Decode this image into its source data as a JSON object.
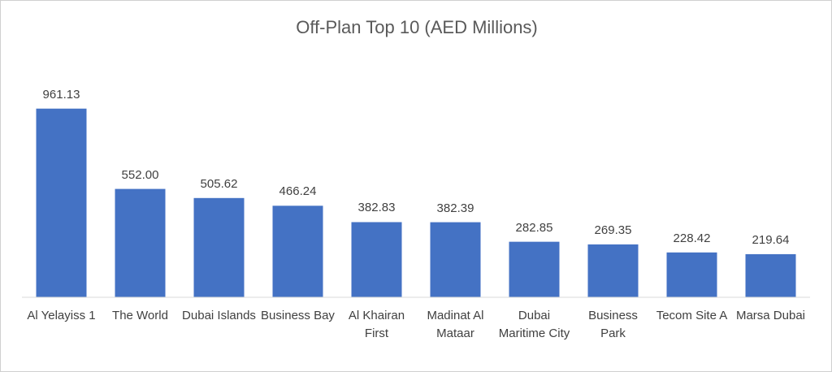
{
  "chart_data": {
    "type": "bar",
    "title": "Off-Plan Top 10 (AED Millions)",
    "categories": [
      "Al Yelayiss 1",
      "The World",
      "Dubai Islands",
      "Business Bay",
      "Al Khairan First",
      "Madinat Al Mataar",
      "Dubai Maritime City",
      "Business Park",
      "Tecom Site A",
      "Marsa Dubai"
    ],
    "values": [
      961.13,
      552.0,
      505.62,
      466.24,
      382.83,
      382.39,
      282.85,
      269.35,
      228.42,
      219.64
    ],
    "value_labels": [
      "961.13",
      "552.00",
      "505.62",
      "466.24",
      "382.83",
      "382.39",
      "282.85",
      "269.35",
      "228.42",
      "219.64"
    ],
    "color": "#4472c4",
    "ylim": [
      0,
      1200
    ]
  }
}
